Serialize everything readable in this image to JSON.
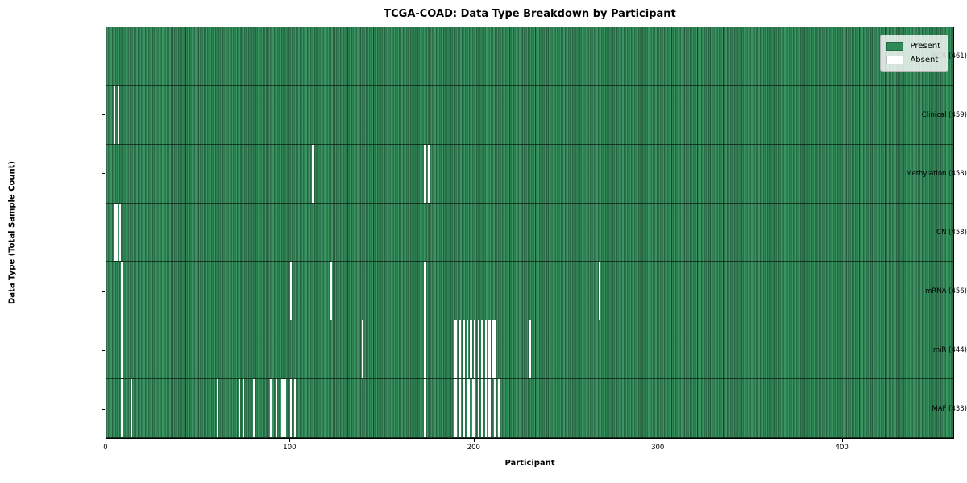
{
  "chart_data": {
    "type": "heatmap",
    "title": "TCGA-COAD: Data Type Breakdown by Participant",
    "xlabel": "Participant",
    "ylabel": "Data Type (Total Sample Count)",
    "x_range": [
      0,
      461
    ],
    "n_participants": 461,
    "x_ticks": [
      0,
      100,
      200,
      300,
      400
    ],
    "grid": false,
    "legend_position": "upper right",
    "colors": {
      "present": "#2e8b57",
      "absent": "#ffffff",
      "cell_edge": "#10281a",
      "legend_border": "#b5b5b5"
    },
    "legend": [
      {
        "label": "Present",
        "color": "#2e8b57"
      },
      {
        "label": "Absent",
        "color": "#ffffff"
      }
    ],
    "rows": [
      {
        "name": "BCR",
        "label": "BCR (461)",
        "present_count": 461,
        "absent_participants": []
      },
      {
        "name": "Clinical",
        "label": "Clinical (459)",
        "present_count": 459,
        "absent_participants": [
          4,
          6
        ]
      },
      {
        "name": "Methylation",
        "label": "Methylation (458)",
        "present_count": 458,
        "absent_participants": [
          112,
          173,
          175
        ]
      },
      {
        "name": "CN",
        "label": "CN (458)",
        "present_count": 458,
        "absent_participants": [
          4,
          5,
          7
        ]
      },
      {
        "name": "mRNA",
        "label": "mRNA (456)",
        "present_count": 456,
        "absent_participants": [
          8,
          100,
          122,
          173,
          268
        ]
      },
      {
        "name": "miR",
        "label": "miR (444)",
        "present_count": 444,
        "absent_participants": [
          8,
          139,
          173,
          189,
          190,
          192,
          194,
          196,
          198,
          200,
          202,
          204,
          206,
          208,
          210,
          211,
          230
        ]
      },
      {
        "name": "MAF",
        "label": "MAF (433)",
        "present_count": 433,
        "absent_participants": [
          8,
          13,
          60,
          72,
          74,
          80,
          89,
          92,
          95,
          96,
          97,
          100,
          102,
          173,
          189,
          190,
          192,
          194,
          196,
          197,
          199,
          200,
          202,
          204,
          206,
          208,
          211,
          213
        ]
      }
    ]
  }
}
